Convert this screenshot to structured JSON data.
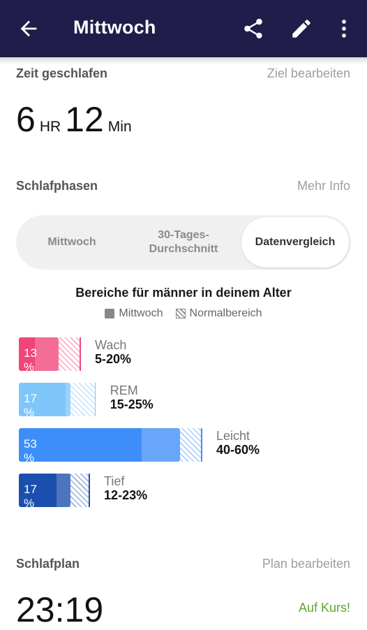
{
  "appbar": {
    "title": "Mittwoch",
    "icons": [
      "arrow-left-icon",
      "share-icon",
      "pencil-icon",
      "more-vert-icon"
    ],
    "background": "#201d4a"
  },
  "sleep_time": {
    "title": "Zeit geschlafen",
    "link": "Ziel bearbeiten",
    "hours": "6",
    "hours_unit": "HR",
    "minutes": "12",
    "minutes_unit": "Min"
  },
  "phases": {
    "title": "Schlafphasen",
    "link": "Mehr Info",
    "tabs": [
      {
        "label": "Mittwoch"
      },
      {
        "label": "30-Tages-\nDurchschnitt"
      },
      {
        "label": "Datenvergleich",
        "active": true
      }
    ],
    "chart_title": "Bereiche für männer in deinem Alter",
    "legend": {
      "solid": "Mittwoch",
      "hatched": "Normalbereich"
    }
  },
  "chart_data": {
    "type": "bar",
    "orientation": "horizontal",
    "categories": [
      "Wach",
      "REM",
      "Leicht",
      "Tief"
    ],
    "series": [
      {
        "name": "Mittwoch",
        "values": [
          13,
          17,
          53,
          17
        ]
      },
      {
        "name": "Normalbereich",
        "ranges": [
          [
            5,
            20
          ],
          [
            15,
            25
          ],
          [
            40,
            60
          ],
          [
            12,
            23
          ]
        ]
      }
    ],
    "value_labels": [
      "13 %",
      "17 %",
      "53 %",
      "17 %"
    ],
    "range_labels": [
      "5-20%",
      "15-25%",
      "40-60%",
      "12-23%"
    ],
    "colors": [
      "#f0457a",
      "#7ec6f9",
      "#3d8ef8",
      "#1b4fae"
    ]
  },
  "plan": {
    "title": "Schlafplan",
    "link": "Plan bearbeiten",
    "time": "23:19",
    "status": "Auf Kurs!",
    "status_color": "#5ca62a"
  }
}
